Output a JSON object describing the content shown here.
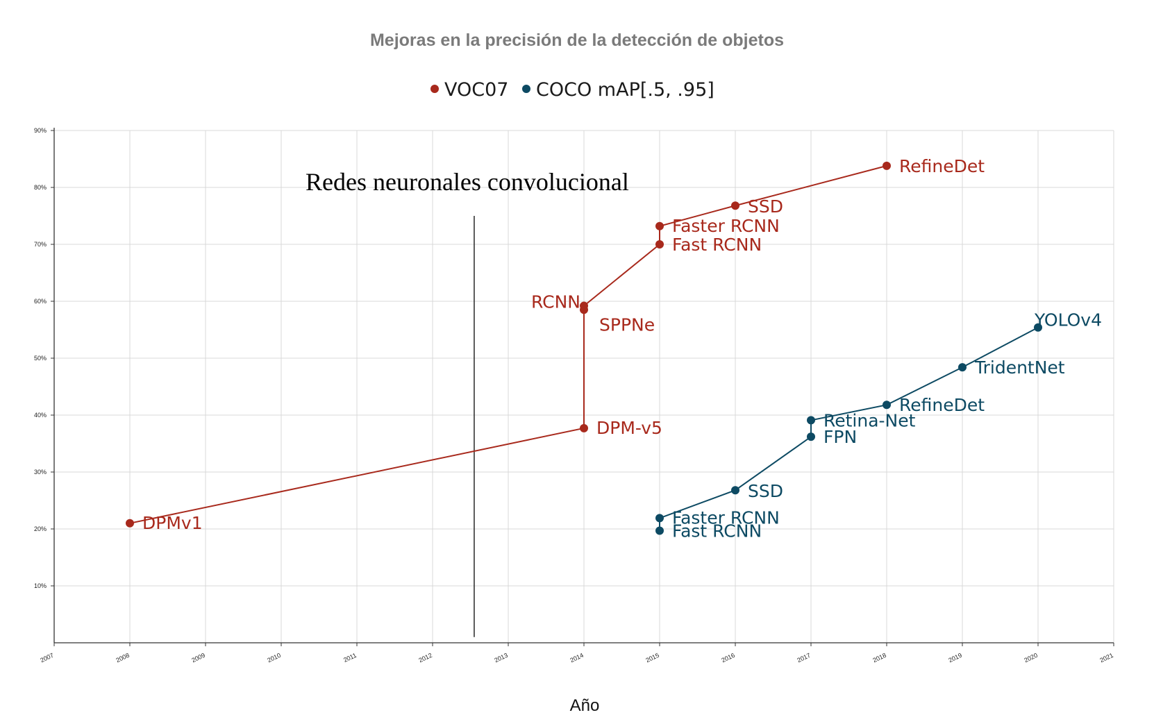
{
  "chart_data": {
    "type": "line",
    "title": "Mejoras en la precisión de la detección de objetos",
    "xlabel": "Año",
    "ylabel": "",
    "xlim": [
      2007,
      2021
    ],
    "ylim": [
      0,
      90
    ],
    "x_ticks": [
      "2007",
      "2008",
      "2009",
      "2010",
      "2011",
      "2012",
      "2013",
      "2014",
      "2015",
      "2016",
      "2017",
      "2018",
      "2019",
      "2020",
      "2021"
    ],
    "y_ticks": [
      "10%",
      "20%",
      "30%",
      "40%",
      "50%",
      "60%",
      "70%",
      "80%",
      "90%"
    ],
    "grid": true,
    "legend_position": "top-center",
    "series": [
      {
        "name": "VOC07",
        "color": "#a8291c",
        "points": [
          {
            "x": 2008,
            "y": 21.0,
            "label": "DPMv1"
          },
          {
            "x": 2014,
            "y": 37.7,
            "label": "DPM-v5"
          },
          {
            "x": 2014,
            "y": 58.5,
            "label": "SPPNe"
          },
          {
            "x": 2014,
            "y": 59.2,
            "label": "RCNN"
          },
          {
            "x": 2015,
            "y": 70.0,
            "label": "Fast RCNN"
          },
          {
            "x": 2015,
            "y": 73.2,
            "label": "Faster RCNN"
          },
          {
            "x": 2016,
            "y": 76.8,
            "label": "SSD"
          },
          {
            "x": 2018,
            "y": 83.8,
            "label": "RefineDet"
          }
        ]
      },
      {
        "name": "COCO mAP[.5, .95]",
        "color": "#0d4a63",
        "points": [
          {
            "x": 2015,
            "y": 19.7,
            "label": "Fast RCNN"
          },
          {
            "x": 2015,
            "y": 21.9,
            "label": "Faster RCNN"
          },
          {
            "x": 2016,
            "y": 26.8,
            "label": "SSD"
          },
          {
            "x": 2017,
            "y": 36.2,
            "label": "FPN"
          },
          {
            "x": 2017,
            "y": 39.1,
            "label": "Retina-Net"
          },
          {
            "x": 2018,
            "y": 41.8,
            "label": "RefineDet"
          },
          {
            "x": 2019,
            "y": 48.4,
            "label": "TridentNet"
          },
          {
            "x": 2020,
            "y": 55.4,
            "label": "YOLOv4"
          }
        ]
      }
    ],
    "annotation": {
      "text": "Redes neuronales convolucional",
      "divider_x": 2012.55,
      "divider_y_range": [
        1,
        75
      ]
    }
  }
}
